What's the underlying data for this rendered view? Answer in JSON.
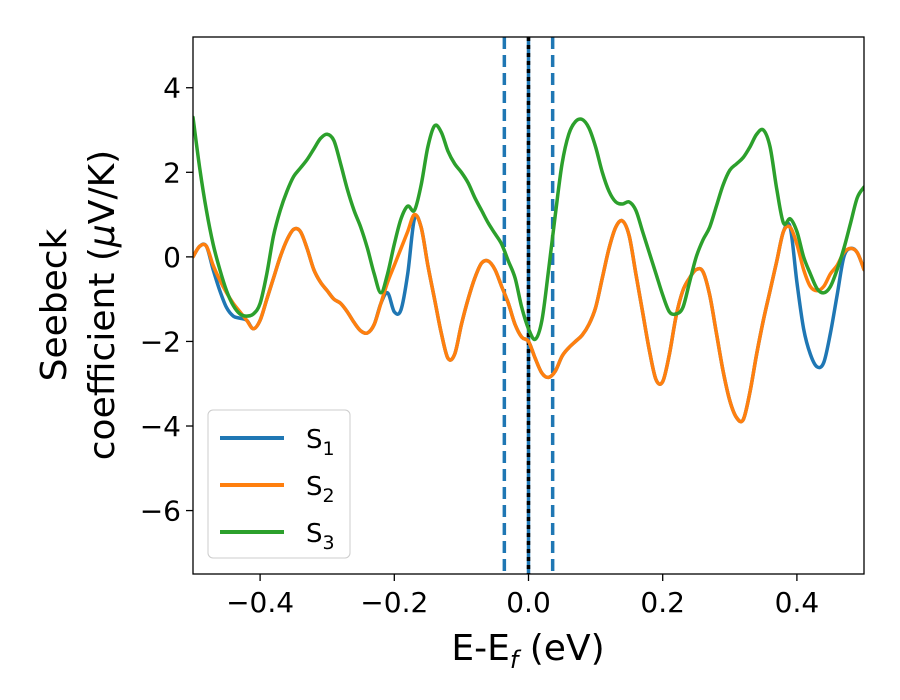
{
  "chart_data": {
    "type": "line",
    "xlabel": "E-E",
    "xlabel_sub": "f",
    "xlabel_unit": " (eV)",
    "ylabel_line1": "Seebeck",
    "ylabel_line2": "coefficient  (",
    "ylabel_mu": "μ",
    "ylabel_unit": "V/K)",
    "xlim": [
      -0.5,
      0.5
    ],
    "ylim": [
      -7.5,
      5.2
    ],
    "xticks": [
      -0.4,
      -0.2,
      0.0,
      0.2,
      0.4
    ],
    "xtick_labels": [
      "−0.4",
      "−0.2",
      "0.0",
      "0.2",
      "0.4"
    ],
    "yticks": [
      4,
      2,
      0,
      -2,
      -4,
      -6
    ],
    "ytick_labels": [
      "4",
      "2",
      "0",
      "−2",
      "−4",
      "−6"
    ],
    "legend_position": "lower-left",
    "vlines": [
      {
        "x": -0.036,
        "color": "#1f77b4",
        "style": "dashed"
      },
      {
        "x": 0.0,
        "color": "#1f77b4",
        "style": "solid"
      },
      {
        "x": 0.0,
        "color": "#000000",
        "style": "dotted"
      },
      {
        "x": 0.036,
        "color": "#1f77b4",
        "style": "dashed"
      }
    ],
    "series": [
      {
        "name": "S",
        "sub": "1",
        "color": "#1f77b4",
        "points": [
          [
            -0.5,
            0.0
          ],
          [
            -0.49,
            0.25
          ],
          [
            -0.48,
            0.25
          ],
          [
            -0.47,
            -0.3
          ],
          [
            -0.46,
            -0.8
          ],
          [
            -0.45,
            -1.2
          ],
          [
            -0.44,
            -1.4
          ],
          [
            -0.43,
            -1.45
          ],
          [
            -0.42,
            -1.5
          ],
          [
            -0.41,
            -1.7
          ],
          [
            -0.4,
            -1.5
          ],
          [
            -0.39,
            -1.0
          ],
          [
            -0.38,
            -0.5
          ],
          [
            -0.37,
            0.0
          ],
          [
            -0.36,
            0.4
          ],
          [
            -0.35,
            0.65
          ],
          [
            -0.34,
            0.6
          ],
          [
            -0.33,
            0.2
          ],
          [
            -0.32,
            -0.3
          ],
          [
            -0.31,
            -0.6
          ],
          [
            -0.3,
            -0.8
          ],
          [
            -0.29,
            -1.0
          ],
          [
            -0.28,
            -1.1
          ],
          [
            -0.27,
            -1.3
          ],
          [
            -0.26,
            -1.55
          ],
          [
            -0.25,
            -1.75
          ],
          [
            -0.24,
            -1.8
          ],
          [
            -0.23,
            -1.6
          ],
          [
            -0.22,
            -1.1
          ],
          [
            -0.21,
            -0.85
          ],
          [
            -0.2,
            -1.3
          ],
          [
            -0.19,
            -1.25
          ],
          [
            -0.18,
            -0.4
          ],
          [
            -0.17,
            0.9
          ],
          [
            -0.16,
            0.7
          ],
          [
            -0.15,
            -0.2
          ],
          [
            -0.14,
            -1.0
          ],
          [
            -0.13,
            -1.8
          ],
          [
            -0.12,
            -2.4
          ],
          [
            -0.11,
            -2.3
          ],
          [
            -0.1,
            -1.6
          ],
          [
            -0.09,
            -1.0
          ],
          [
            -0.08,
            -0.5
          ],
          [
            -0.07,
            -0.15
          ],
          [
            -0.06,
            -0.1
          ],
          [
            -0.05,
            -0.3
          ],
          [
            -0.04,
            -0.7
          ],
          [
            -0.03,
            -1.1
          ],
          [
            -0.02,
            -1.6
          ],
          [
            -0.01,
            -1.9
          ],
          [
            0.0,
            -2.0
          ],
          [
            0.01,
            -2.4
          ],
          [
            0.02,
            -2.75
          ],
          [
            0.03,
            -2.85
          ],
          [
            0.04,
            -2.7
          ],
          [
            0.05,
            -2.35
          ],
          [
            0.06,
            -2.15
          ],
          [
            0.07,
            -2.0
          ],
          [
            0.08,
            -1.85
          ],
          [
            0.09,
            -1.6
          ],
          [
            0.1,
            -1.2
          ],
          [
            0.11,
            -0.5
          ],
          [
            0.12,
            0.2
          ],
          [
            0.13,
            0.7
          ],
          [
            0.14,
            0.85
          ],
          [
            0.15,
            0.5
          ],
          [
            0.16,
            -0.4
          ],
          [
            0.17,
            -1.3
          ],
          [
            0.18,
            -2.2
          ],
          [
            0.19,
            -2.9
          ],
          [
            0.2,
            -2.95
          ],
          [
            0.21,
            -2.3
          ],
          [
            0.22,
            -1.4
          ],
          [
            0.23,
            -0.8
          ],
          [
            0.24,
            -0.5
          ],
          [
            0.25,
            -0.3
          ],
          [
            0.26,
            -0.35
          ],
          [
            0.27,
            -0.9
          ],
          [
            0.28,
            -1.8
          ],
          [
            0.29,
            -2.7
          ],
          [
            0.3,
            -3.4
          ],
          [
            0.31,
            -3.8
          ],
          [
            0.32,
            -3.85
          ],
          [
            0.33,
            -3.2
          ],
          [
            0.34,
            -2.3
          ],
          [
            0.35,
            -1.5
          ],
          [
            0.36,
            -0.8
          ],
          [
            0.37,
            -0.1
          ],
          [
            0.38,
            0.6
          ],
          [
            0.39,
            0.7
          ],
          [
            0.4,
            -0.6
          ],
          [
            0.41,
            -1.7
          ],
          [
            0.42,
            -2.3
          ],
          [
            0.43,
            -2.6
          ],
          [
            0.44,
            -2.5
          ],
          [
            0.45,
            -1.8
          ],
          [
            0.46,
            -0.9
          ],
          [
            0.47,
            0.0
          ],
          [
            0.48,
            0.2
          ],
          [
            0.49,
            0.1
          ],
          [
            0.5,
            -0.3
          ]
        ]
      },
      {
        "name": "S",
        "sub": "2",
        "color": "#ff7f0e",
        "points": [
          [
            -0.5,
            0.0
          ],
          [
            -0.49,
            0.25
          ],
          [
            -0.48,
            0.25
          ],
          [
            -0.47,
            -0.2
          ],
          [
            -0.46,
            -0.55
          ],
          [
            -0.45,
            -0.85
          ],
          [
            -0.44,
            -1.1
          ],
          [
            -0.43,
            -1.3
          ],
          [
            -0.42,
            -1.5
          ],
          [
            -0.41,
            -1.7
          ],
          [
            -0.4,
            -1.5
          ],
          [
            -0.39,
            -1.0
          ],
          [
            -0.38,
            -0.5
          ],
          [
            -0.37,
            0.0
          ],
          [
            -0.36,
            0.4
          ],
          [
            -0.35,
            0.65
          ],
          [
            -0.34,
            0.6
          ],
          [
            -0.33,
            0.2
          ],
          [
            -0.32,
            -0.3
          ],
          [
            -0.31,
            -0.6
          ],
          [
            -0.3,
            -0.8
          ],
          [
            -0.29,
            -1.0
          ],
          [
            -0.28,
            -1.1
          ],
          [
            -0.27,
            -1.3
          ],
          [
            -0.26,
            -1.55
          ],
          [
            -0.25,
            -1.75
          ],
          [
            -0.24,
            -1.8
          ],
          [
            -0.23,
            -1.6
          ],
          [
            -0.22,
            -1.1
          ],
          [
            -0.21,
            -0.6
          ],
          [
            -0.2,
            -0.2
          ],
          [
            -0.19,
            0.2
          ],
          [
            -0.18,
            0.6
          ],
          [
            -0.17,
            1.0
          ],
          [
            -0.16,
            0.7
          ],
          [
            -0.15,
            -0.2
          ],
          [
            -0.14,
            -1.0
          ],
          [
            -0.13,
            -1.8
          ],
          [
            -0.12,
            -2.4
          ],
          [
            -0.11,
            -2.3
          ],
          [
            -0.1,
            -1.6
          ],
          [
            -0.09,
            -1.0
          ],
          [
            -0.08,
            -0.5
          ],
          [
            -0.07,
            -0.15
          ],
          [
            -0.06,
            -0.1
          ],
          [
            -0.05,
            -0.3
          ],
          [
            -0.04,
            -0.7
          ],
          [
            -0.03,
            -1.1
          ],
          [
            -0.02,
            -1.6
          ],
          [
            -0.01,
            -1.9
          ],
          [
            0.0,
            -2.0
          ],
          [
            0.01,
            -2.4
          ],
          [
            0.02,
            -2.75
          ],
          [
            0.03,
            -2.85
          ],
          [
            0.04,
            -2.7
          ],
          [
            0.05,
            -2.35
          ],
          [
            0.06,
            -2.15
          ],
          [
            0.07,
            -2.0
          ],
          [
            0.08,
            -1.85
          ],
          [
            0.09,
            -1.6
          ],
          [
            0.1,
            -1.2
          ],
          [
            0.11,
            -0.5
          ],
          [
            0.12,
            0.2
          ],
          [
            0.13,
            0.7
          ],
          [
            0.14,
            0.85
          ],
          [
            0.15,
            0.5
          ],
          [
            0.16,
            -0.4
          ],
          [
            0.17,
            -1.3
          ],
          [
            0.18,
            -2.2
          ],
          [
            0.19,
            -2.9
          ],
          [
            0.2,
            -2.95
          ],
          [
            0.21,
            -2.3
          ],
          [
            0.22,
            -1.4
          ],
          [
            0.23,
            -0.8
          ],
          [
            0.24,
            -0.5
          ],
          [
            0.25,
            -0.3
          ],
          [
            0.26,
            -0.35
          ],
          [
            0.27,
            -0.9
          ],
          [
            0.28,
            -1.8
          ],
          [
            0.29,
            -2.7
          ],
          [
            0.3,
            -3.4
          ],
          [
            0.31,
            -3.8
          ],
          [
            0.32,
            -3.85
          ],
          [
            0.33,
            -3.2
          ],
          [
            0.34,
            -2.3
          ],
          [
            0.35,
            -1.5
          ],
          [
            0.36,
            -0.8
          ],
          [
            0.37,
            -0.1
          ],
          [
            0.38,
            0.6
          ],
          [
            0.39,
            0.7
          ],
          [
            0.4,
            0.3
          ],
          [
            0.41,
            -0.3
          ],
          [
            0.42,
            -0.7
          ],
          [
            0.43,
            -0.8
          ],
          [
            0.44,
            -0.7
          ],
          [
            0.45,
            -0.4
          ],
          [
            0.46,
            -0.2
          ],
          [
            0.47,
            0.1
          ],
          [
            0.48,
            0.2
          ],
          [
            0.49,
            0.1
          ],
          [
            0.5,
            -0.3
          ]
        ]
      },
      {
        "name": "S",
        "sub": "3",
        "color": "#2ca02c",
        "points": [
          [
            -0.5,
            3.3
          ],
          [
            -0.49,
            2.1
          ],
          [
            -0.48,
            1.1
          ],
          [
            -0.47,
            0.3
          ],
          [
            -0.46,
            -0.3
          ],
          [
            -0.45,
            -0.8
          ],
          [
            -0.44,
            -1.15
          ],
          [
            -0.43,
            -1.35
          ],
          [
            -0.42,
            -1.4
          ],
          [
            -0.41,
            -1.35
          ],
          [
            -0.4,
            -1.1
          ],
          [
            -0.39,
            -0.4
          ],
          [
            -0.38,
            0.5
          ],
          [
            -0.37,
            1.1
          ],
          [
            -0.36,
            1.55
          ],
          [
            -0.35,
            1.9
          ],
          [
            -0.34,
            2.1
          ],
          [
            -0.33,
            2.3
          ],
          [
            -0.32,
            2.55
          ],
          [
            -0.31,
            2.8
          ],
          [
            -0.3,
            2.9
          ],
          [
            -0.29,
            2.75
          ],
          [
            -0.28,
            2.2
          ],
          [
            -0.27,
            1.6
          ],
          [
            -0.26,
            1.1
          ],
          [
            -0.25,
            0.7
          ],
          [
            -0.24,
            0.2
          ],
          [
            -0.23,
            -0.4
          ],
          [
            -0.22,
            -0.85
          ],
          [
            -0.21,
            -0.4
          ],
          [
            -0.2,
            0.3
          ],
          [
            -0.19,
            0.9
          ],
          [
            -0.18,
            1.2
          ],
          [
            -0.17,
            1.1
          ],
          [
            -0.16,
            1.7
          ],
          [
            -0.15,
            2.6
          ],
          [
            -0.14,
            3.1
          ],
          [
            -0.13,
            2.95
          ],
          [
            -0.12,
            2.5
          ],
          [
            -0.11,
            2.2
          ],
          [
            -0.1,
            2.0
          ],
          [
            -0.09,
            1.75
          ],
          [
            -0.08,
            1.4
          ],
          [
            -0.07,
            1.1
          ],
          [
            -0.06,
            0.8
          ],
          [
            -0.05,
            0.55
          ],
          [
            -0.04,
            0.3
          ],
          [
            -0.03,
            -0.1
          ],
          [
            -0.02,
            -0.5
          ],
          [
            -0.01,
            -1.2
          ],
          [
            0.0,
            -1.7
          ],
          [
            0.01,
            -1.95
          ],
          [
            0.02,
            -1.5
          ],
          [
            0.03,
            -0.3
          ],
          [
            0.04,
            1.0
          ],
          [
            0.05,
            2.2
          ],
          [
            0.06,
            2.9
          ],
          [
            0.07,
            3.2
          ],
          [
            0.08,
            3.25
          ],
          [
            0.09,
            3.05
          ],
          [
            0.1,
            2.6
          ],
          [
            0.11,
            2.0
          ],
          [
            0.12,
            1.55
          ],
          [
            0.13,
            1.3
          ],
          [
            0.14,
            1.25
          ],
          [
            0.15,
            1.3
          ],
          [
            0.16,
            1.1
          ],
          [
            0.17,
            0.6
          ],
          [
            0.18,
            0.1
          ],
          [
            0.19,
            -0.4
          ],
          [
            0.2,
            -0.9
          ],
          [
            0.21,
            -1.3
          ],
          [
            0.22,
            -1.35
          ],
          [
            0.23,
            -1.2
          ],
          [
            0.24,
            -0.6
          ],
          [
            0.25,
            0.0
          ],
          [
            0.26,
            0.4
          ],
          [
            0.27,
            0.7
          ],
          [
            0.28,
            1.2
          ],
          [
            0.29,
            1.7
          ],
          [
            0.3,
            2.05
          ],
          [
            0.31,
            2.2
          ],
          [
            0.32,
            2.35
          ],
          [
            0.33,
            2.6
          ],
          [
            0.34,
            2.9
          ],
          [
            0.35,
            3.0
          ],
          [
            0.36,
            2.6
          ],
          [
            0.37,
            1.6
          ],
          [
            0.38,
            0.8
          ],
          [
            0.39,
            0.9
          ],
          [
            0.4,
            0.6
          ],
          [
            0.41,
            0.0
          ],
          [
            0.42,
            -0.4
          ],
          [
            0.43,
            -0.75
          ],
          [
            0.44,
            -0.85
          ],
          [
            0.45,
            -0.7
          ],
          [
            0.46,
            -0.3
          ],
          [
            0.47,
            0.2
          ],
          [
            0.48,
            0.8
          ],
          [
            0.49,
            1.4
          ],
          [
            0.5,
            1.65
          ]
        ]
      }
    ]
  }
}
